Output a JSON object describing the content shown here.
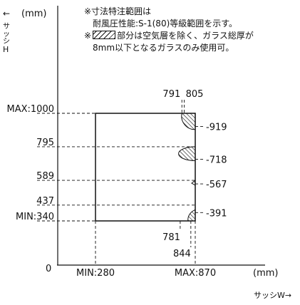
{
  "axis": {
    "y_arrow": "←",
    "y_unit": "(mm)",
    "y_title_chars": [
      "サ",
      "ッ",
      "シ",
      "H"
    ],
    "x_unit": "(mm)",
    "x_title": "サッシW→",
    "origin": "0"
  },
  "notes": {
    "line1": "※寸法特注範囲は",
    "line2": "耐風圧性能:S-1(80)等級範囲を示す。",
    "line3_prefix": "※",
    "line3_suffix": "部分は空気層を除く、ガラス総厚が",
    "line4": "8mm以下となるガラスのみ使用可。"
  },
  "y_ticks": [
    {
      "value": 1000,
      "label": "MAX:1000"
    },
    {
      "value": 795,
      "label": "795"
    },
    {
      "value": 589,
      "label": "589"
    },
    {
      "value": 437,
      "label": "437"
    },
    {
      "value": 340,
      "label": "MIN:340"
    }
  ],
  "x_ticks": [
    {
      "value": 280,
      "label": "MIN:280"
    },
    {
      "value": 870,
      "label": "MAX:870"
    }
  ],
  "top_marks": [
    {
      "value": 791,
      "label": "791"
    },
    {
      "value": 805,
      "label": "805"
    }
  ],
  "bottom_marks": [
    {
      "value": 781,
      "label": "781"
    },
    {
      "value": 844,
      "label": "844"
    }
  ],
  "right_marks": [
    {
      "value": 919,
      "label": "919"
    },
    {
      "value": 718,
      "label": "718"
    },
    {
      "value": 567,
      "label": "567"
    },
    {
      "value": 391,
      "label": "391"
    }
  ],
  "range": {
    "w_min": 280,
    "w_max": 870,
    "h_min": 340,
    "h_max": 1000
  }
}
